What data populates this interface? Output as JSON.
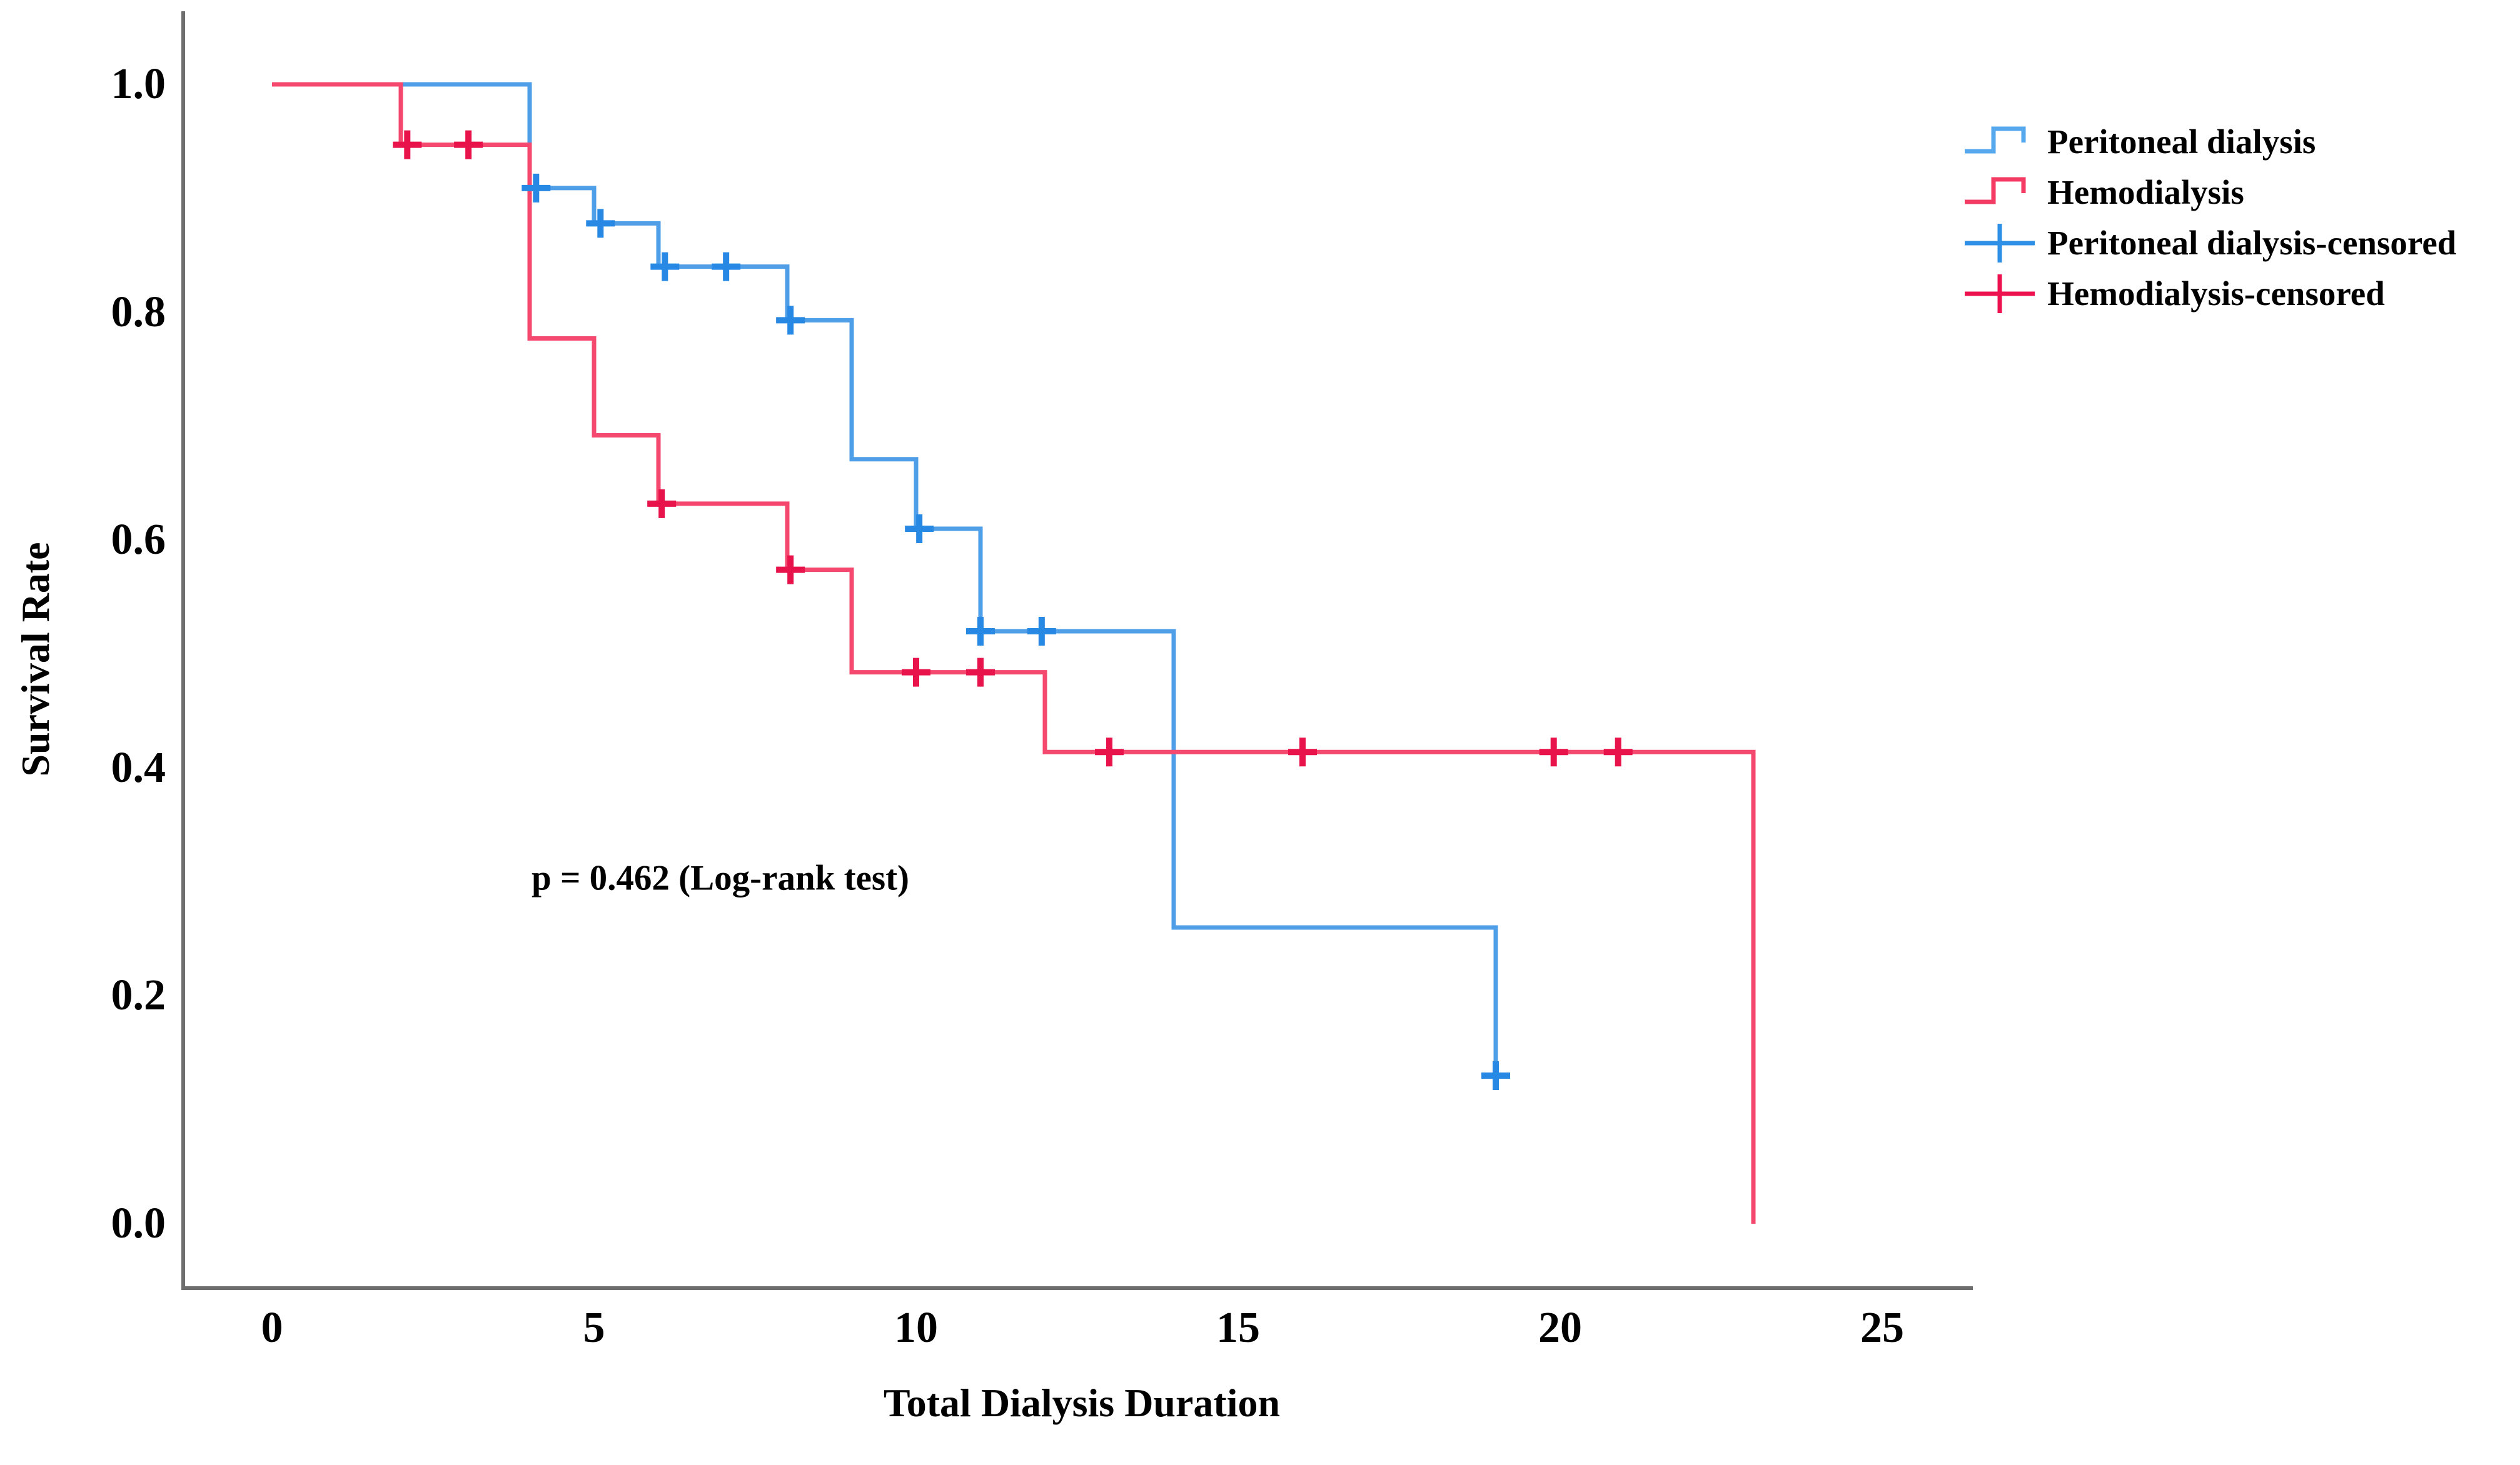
{
  "figure": {
    "background": "#ffffff",
    "text_color": "#000000"
  },
  "chart_data": {
    "type": "line",
    "subtype": "kaplan-meier-step",
    "title": "",
    "xlabel": "Total Dialysis Duration",
    "ylabel": "Survival Rate",
    "annotation": "p = 0.462 (Log-rank test)",
    "xlim": [
      0,
      25
    ],
    "ylim": [
      0.0,
      1.0
    ],
    "x_ticks": [
      0,
      5,
      10,
      15,
      20,
      25
    ],
    "y_ticks": [
      1.0,
      0.8,
      0.6,
      0.4,
      0.2,
      0.0
    ],
    "grid": false,
    "legend_position": "upper-right-outside",
    "axis_color": "#6e6e6e",
    "series": [
      {
        "name": "Peritoneal dialysis",
        "color": "#4E9EE8",
        "censor_color": "#2889E4",
        "steps": [
          [
            0,
            1.0
          ],
          [
            4,
            1.0
          ],
          [
            4,
            0.909
          ],
          [
            5,
            0.909
          ],
          [
            5,
            0.878
          ],
          [
            6,
            0.878
          ],
          [
            6,
            0.84
          ],
          [
            8,
            0.84
          ],
          [
            8,
            0.793
          ],
          [
            9,
            0.793
          ],
          [
            9,
            0.671
          ],
          [
            10,
            0.671
          ],
          [
            10,
            0.61
          ],
          [
            11,
            0.61
          ],
          [
            11,
            0.52
          ],
          [
            14,
            0.52
          ],
          [
            14,
            0.26
          ],
          [
            19,
            0.26
          ],
          [
            19,
            0.13
          ]
        ],
        "censored": [
          [
            4.1,
            0.909
          ],
          [
            5.1,
            0.878
          ],
          [
            6.1,
            0.84
          ],
          [
            7.05,
            0.84
          ],
          [
            8.05,
            0.793
          ],
          [
            10.05,
            0.61
          ],
          [
            11.0,
            0.52
          ],
          [
            11.95,
            0.52
          ],
          [
            19.0,
            0.13
          ]
        ]
      },
      {
        "name": "Hemodialysis",
        "color": "#F4486E",
        "censor_color": "#E8134B",
        "steps": [
          [
            0,
            1.0
          ],
          [
            2,
            1.0
          ],
          [
            2,
            0.947
          ],
          [
            4,
            0.947
          ],
          [
            4,
            0.777
          ],
          [
            5,
            0.777
          ],
          [
            5,
            0.692
          ],
          [
            6,
            0.692
          ],
          [
            6,
            0.632
          ],
          [
            8,
            0.632
          ],
          [
            8,
            0.574
          ],
          [
            9,
            0.574
          ],
          [
            9,
            0.484
          ],
          [
            12,
            0.484
          ],
          [
            12,
            0.414
          ],
          [
            23,
            0.414
          ],
          [
            23,
            0.0
          ]
        ],
        "censored": [
          [
            2.1,
            0.947
          ],
          [
            3.05,
            0.947
          ],
          [
            6.05,
            0.632
          ],
          [
            8.05,
            0.574
          ],
          [
            10.0,
            0.484
          ],
          [
            11.0,
            0.484
          ],
          [
            13.0,
            0.414
          ],
          [
            16.0,
            0.414
          ],
          [
            19.9,
            0.414
          ],
          [
            20.9,
            0.414
          ]
        ]
      }
    ],
    "legend": [
      {
        "label": "Peritoneal dialysis",
        "symbol": "step",
        "color": "#55A7EE"
      },
      {
        "label": "Hemodialysis",
        "symbol": "step",
        "color": "#F43B64"
      },
      {
        "label": "Peritoneal dialysis-censored",
        "symbol": "plus",
        "color": "#2E8FE6"
      },
      {
        "label": "Hemodialysis-censored",
        "symbol": "plus",
        "color": "#ED1150"
      }
    ]
  }
}
